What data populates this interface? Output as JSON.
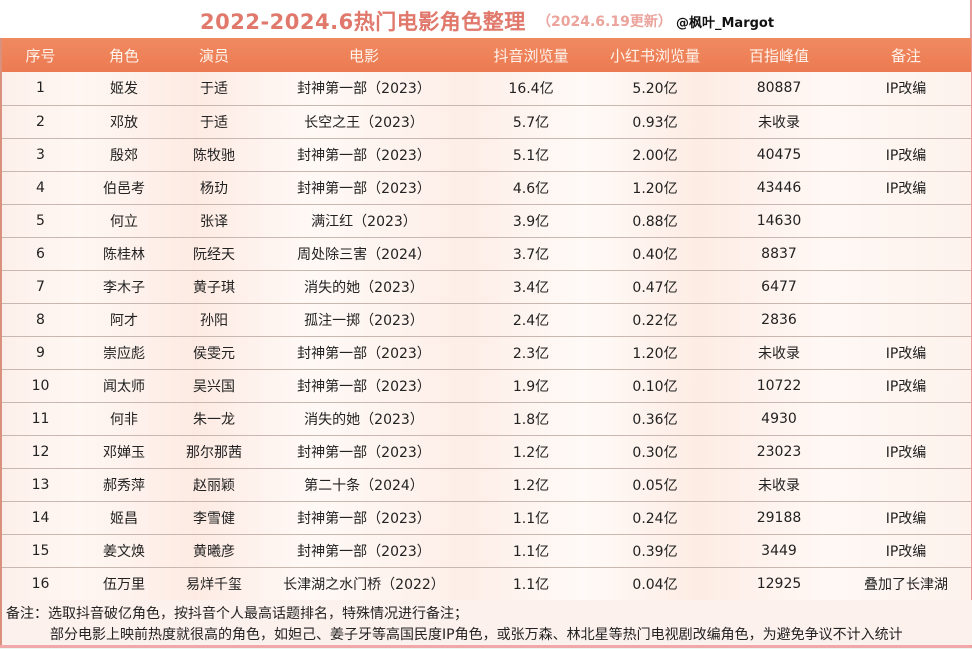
{
  "header": {
    "title": "2022-2024.6热门电影角色整理",
    "subtitle": "（2024.6.19更新）",
    "author": "@枫叶_Margot",
    "title_color": "#e0786c",
    "header_row_color": "#ec7a52"
  },
  "table": {
    "columns": [
      "序号",
      "角色",
      "演员",
      "电影",
      "抖音浏览量",
      "小红书浏览量",
      "百指峰值",
      "备注"
    ],
    "rows": [
      [
        "1",
        "姬发",
        "于适",
        "封神第一部（2023）",
        "16.4亿",
        "5.20亿",
        "80887",
        "IP改编"
      ],
      [
        "2",
        "邓放",
        "于适",
        "长空之王（2023）",
        "5.7亿",
        "0.93亿",
        "未收录",
        ""
      ],
      [
        "3",
        "殷郊",
        "陈牧驰",
        "封神第一部（2023）",
        "5.1亿",
        "2.00亿",
        "40475",
        "IP改编"
      ],
      [
        "4",
        "伯邑考",
        "杨玏",
        "封神第一部（2023）",
        "4.6亿",
        "1.20亿",
        "43446",
        "IP改编"
      ],
      [
        "5",
        "何立",
        "张译",
        "满江红（2023）",
        "3.9亿",
        "0.88亿",
        "14630",
        ""
      ],
      [
        "6",
        "陈桂林",
        "阮经天",
        "周处除三害（2024）",
        "3.7亿",
        "0.40亿",
        "8837",
        ""
      ],
      [
        "7",
        "李木子",
        "黄子琪",
        "消失的她（2023）",
        "3.4亿",
        "0.47亿",
        "6477",
        ""
      ],
      [
        "8",
        "阿才",
        "孙阳",
        "孤注一掷（2023）",
        "2.4亿",
        "0.22亿",
        "2836",
        ""
      ],
      [
        "9",
        "崇应彪",
        "侯雯元",
        "封神第一部（2023）",
        "2.3亿",
        "1.20亿",
        "未收录",
        "IP改编"
      ],
      [
        "10",
        "闻太师",
        "吴兴国",
        "封神第一部（2023）",
        "1.9亿",
        "0.10亿",
        "10722",
        "IP改编"
      ],
      [
        "11",
        "何非",
        "朱一龙",
        "消失的她（2023）",
        "1.8亿",
        "0.36亿",
        "4930",
        ""
      ],
      [
        "12",
        "邓婵玉",
        "那尔那茜",
        "封神第一部（2023）",
        "1.2亿",
        "0.30亿",
        "23023",
        "IP改编"
      ],
      [
        "13",
        "郝秀萍",
        "赵丽颖",
        "第二十条（2024）",
        "1.2亿",
        "0.05亿",
        "未收录",
        ""
      ],
      [
        "14",
        "姬昌",
        "李雪健",
        "封神第一部（2023）",
        "1.1亿",
        "0.24亿",
        "29188",
        "IP改编"
      ],
      [
        "15",
        "姜文焕",
        "黄曦彦",
        "封神第一部（2023）",
        "1.1亿",
        "0.39亿",
        "3449",
        "IP改编"
      ],
      [
        "16",
        "伍万里",
        "易烊千玺",
        "长津湖之水门桥（2022）",
        "1.1亿",
        "0.04亿",
        "12925",
        "叠加了长津湖"
      ]
    ]
  },
  "notes": {
    "line1": "备注：选取抖音破亿角色，按抖音个人最高话题排名，特殊情况进行备注；",
    "line2": "部分电影上映前热度就很高的角色，如妲己、姜子牙等高国民度IP角色，或张万森、林北星等热门电视剧改编角色，为避免争议不计入统计"
  }
}
